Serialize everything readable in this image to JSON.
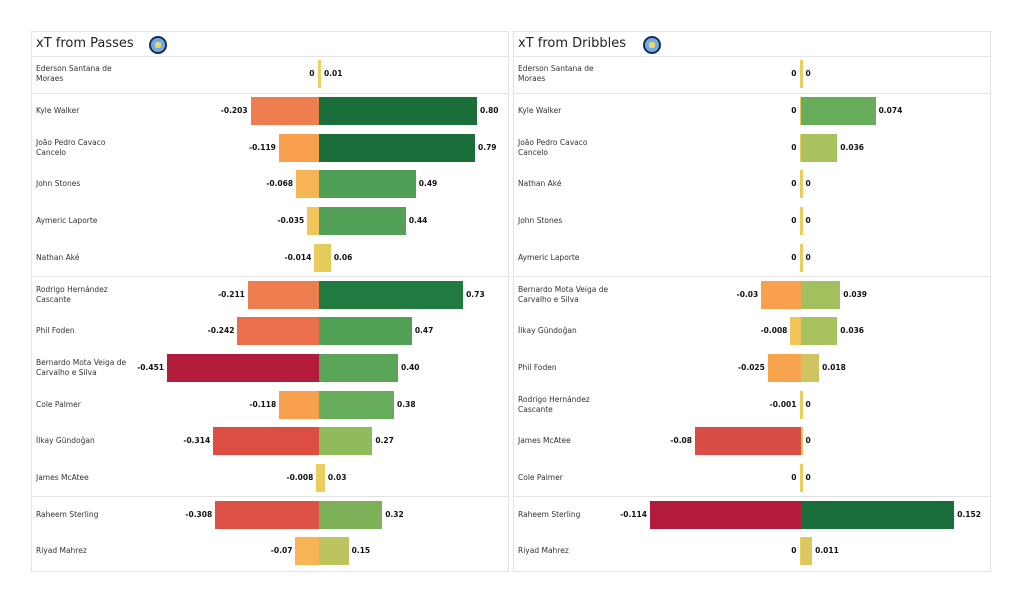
{
  "chart_data": [
    {
      "type": "bar",
      "orientation": "horizontal-diverging",
      "title": "xT from Passes",
      "crest_icon": "manchester-city-crest-icon",
      "group_breaks_after": [
        0,
        5,
        11
      ],
      "rows": [
        {
          "player": "Ederson Santana de Moraes",
          "neg": 0,
          "neg_label": "0",
          "pos": 0.01,
          "pos_label": "0.01",
          "neg_color": "#ebcc5c",
          "pos_color": "#f0d060"
        },
        {
          "player": "Kyle Walker",
          "neg": -0.203,
          "neg_label": "-0.203",
          "pos": 0.8,
          "pos_label": "0.80",
          "neg_color": "#ee7d4f",
          "pos_color": "#1a6e3a"
        },
        {
          "player": "João Pedro Cavaco Cancelo",
          "neg": -0.119,
          "neg_label": "-0.119",
          "pos": 0.79,
          "pos_label": "0.79",
          "neg_color": "#f9a04f",
          "pos_color": "#1a6e3a"
        },
        {
          "player": "John Stones",
          "neg": -0.068,
          "neg_label": "-0.068",
          "pos": 0.49,
          "pos_label": "0.49",
          "neg_color": "#f6b455",
          "pos_color": "#4e9e55"
        },
        {
          "player": "Aymeric  Laporte",
          "neg": -0.035,
          "neg_label": "-0.035",
          "pos": 0.44,
          "pos_label": "0.44",
          "neg_color": "#f2c55a",
          "pos_color": "#53a157"
        },
        {
          "player": "Nathan Aké",
          "neg": -0.014,
          "neg_label": "-0.014",
          "pos": 0.06,
          "pos_label": "0.06",
          "neg_color": "#ebcc5c",
          "pos_color": "#e5cc5a"
        },
        {
          "player": "Rodrigo Hernández Cascante",
          "neg": -0.211,
          "neg_label": "-0.211",
          "pos": 0.73,
          "pos_label": "0.73",
          "neg_color": "#ee7d4f",
          "pos_color": "#217a40"
        },
        {
          "player": "Phil Foden",
          "neg": -0.242,
          "neg_label": "-0.242",
          "pos": 0.47,
          "pos_label": "0.47",
          "neg_color": "#ec6f4b",
          "pos_color": "#52a055"
        },
        {
          "player": "Bernardo Mota Veiga de Carvalho e Silva",
          "neg": -0.451,
          "neg_label": "-0.451",
          "pos": 0.4,
          "pos_label": "0.40",
          "neg_color": "#b31b3c",
          "pos_color": "#5aa558"
        },
        {
          "player": "Cole Palmer",
          "neg": -0.118,
          "neg_label": "-0.118",
          "pos": 0.38,
          "pos_label": "0.38",
          "neg_color": "#f9a04f",
          "pos_color": "#66ac5a"
        },
        {
          "player": "İlkay Gündoğan",
          "neg": -0.314,
          "neg_label": "-0.314",
          "pos": 0.27,
          "pos_label": "0.27",
          "neg_color": "#dc4d42",
          "pos_color": "#90bb5a"
        },
        {
          "player": "James McAtee",
          "neg": -0.008,
          "neg_label": "-0.008",
          "pos": 0.03,
          "pos_label": "0.03",
          "neg_color": "#ebcc5c",
          "pos_color": "#ebcc5c"
        },
        {
          "player": "Raheem Sterling",
          "neg": -0.308,
          "neg_label": "-0.308",
          "pos": 0.32,
          "pos_label": "0.32",
          "neg_color": "#dd5044",
          "pos_color": "#7cb15a"
        },
        {
          "player": "Riyad Mahrez",
          "neg": -0.07,
          "neg_label": "-0.07",
          "pos": 0.15,
          "pos_label": "0.15",
          "neg_color": "#f6b455",
          "pos_color": "#bdc35e"
        }
      ]
    },
    {
      "type": "bar",
      "orientation": "horizontal-diverging",
      "title": "xT from Dribbles",
      "crest_icon": "manchester-city-crest-icon",
      "group_breaks_after": [
        0,
        5,
        11
      ],
      "rows": [
        {
          "player": "Ederson Santana de Moraes",
          "neg": 0,
          "neg_label": "0",
          "pos": 0,
          "pos_label": "0",
          "neg_color": "#ebcc5c",
          "pos_color": "#ebcc5c"
        },
        {
          "player": "Kyle Walker",
          "neg": 0,
          "neg_label": "0",
          "pos": 0.074,
          "pos_label": "0.074",
          "neg_color": "#ebcc5c",
          "pos_color": "#66ac5a"
        },
        {
          "player": "João Pedro Cavaco Cancelo",
          "neg": 0,
          "neg_label": "0",
          "pos": 0.036,
          "pos_label": "0.036",
          "neg_color": "#ebcc5c",
          "pos_color": "#a8c25e"
        },
        {
          "player": "Nathan Aké",
          "neg": 0,
          "neg_label": "0",
          "pos": 0,
          "pos_label": "0",
          "neg_color": "#ebcc5c",
          "pos_color": "#ebcc5c"
        },
        {
          "player": "John Stones",
          "neg": 0,
          "neg_label": "0",
          "pos": 0,
          "pos_label": "0",
          "neg_color": "#ebcc5c",
          "pos_color": "#ebcc5c"
        },
        {
          "player": "Aymeric  Laporte",
          "neg": 0,
          "neg_label": "0",
          "pos": 0,
          "pos_label": "0",
          "neg_color": "#ebcc5c",
          "pos_color": "#ebcc5c"
        },
        {
          "player": "Bernardo Mota Veiga de Carvalho e Silva",
          "neg": -0.03,
          "neg_label": "-0.03",
          "pos": 0.039,
          "pos_label": "0.039",
          "neg_color": "#f9a04f",
          "pos_color": "#a2c15e"
        },
        {
          "player": "İlkay Gündoğan",
          "neg": -0.008,
          "neg_label": "-0.008",
          "pos": 0.036,
          "pos_label": "0.036",
          "neg_color": "#f2c55a",
          "pos_color": "#a8c25e"
        },
        {
          "player": "Phil Foden",
          "neg": -0.025,
          "neg_label": "-0.025",
          "pos": 0.018,
          "pos_label": "0.018",
          "neg_color": "#f7a44f",
          "pos_color": "#cec460"
        },
        {
          "player": "Rodrigo Hernández Cascante",
          "neg": -0.001,
          "neg_label": "-0.001",
          "pos": 0,
          "pos_label": "0",
          "neg_color": "#ebcc5c",
          "pos_color": "#ebcc5c"
        },
        {
          "player": "James McAtee",
          "neg": -0.08,
          "neg_label": "-0.08",
          "pos": 0,
          "pos_label": "0",
          "neg_color": "#d94e44",
          "pos_color": "#ebcc5c"
        },
        {
          "player": "Cole Palmer",
          "neg": 0,
          "neg_label": "0",
          "pos": 0,
          "pos_label": "0",
          "neg_color": "#ebcc5c",
          "pos_color": "#ebcc5c"
        },
        {
          "player": "Raheem Sterling",
          "neg": -0.114,
          "neg_label": "-0.114",
          "pos": 0.152,
          "pos_label": "0.152",
          "neg_color": "#b31b3c",
          "pos_color": "#1a6e3a"
        },
        {
          "player": "Riyad Mahrez",
          "neg": 0,
          "neg_label": "0",
          "pos": 0.011,
          "pos_label": "0.011",
          "neg_color": "#ebcc5c",
          "pos_color": "#dcc85e"
        }
      ]
    }
  ]
}
